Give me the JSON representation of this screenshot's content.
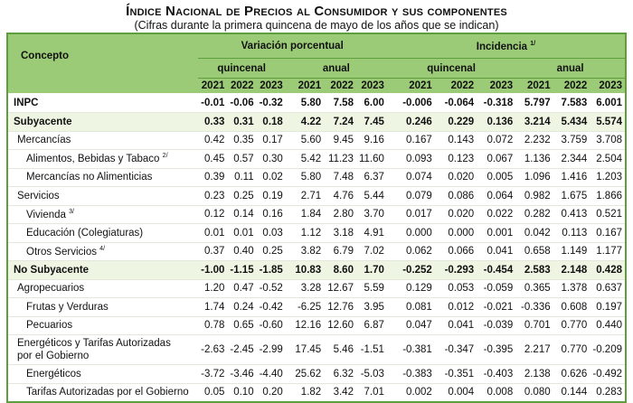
{
  "title": "Índice Nacional de Precios al Consumidor y sus componentes",
  "subtitle": "(Cifras durante la primera quincena de mayo de los años que se indican)",
  "header": {
    "concepto": "Concepto",
    "variacion": "Variación porcentual",
    "incidencia": "Incidencia",
    "incidencia_note": "1/",
    "quincenal": "quincenal",
    "anual": "anual",
    "years": [
      "2021",
      "2022",
      "2023"
    ]
  },
  "rows": [
    {
      "label": "INPC",
      "note": "",
      "level": 0,
      "bold": true,
      "shade": false,
      "values": [
        "-0.01",
        "-0.06",
        "-0.32",
        "5.80",
        "7.58",
        "6.00",
        "-0.006",
        "-0.064",
        "-0.318",
        "5.797",
        "7.583",
        "6.001"
      ]
    },
    {
      "label": "Subyacente",
      "note": "",
      "level": 0,
      "bold": true,
      "shade": true,
      "values": [
        "0.33",
        "0.31",
        "0.18",
        "4.22",
        "7.24",
        "7.45",
        "0.246",
        "0.229",
        "0.136",
        "3.214",
        "5.434",
        "5.574"
      ]
    },
    {
      "label": "Mercancías",
      "note": "",
      "level": 1,
      "values": [
        "0.42",
        "0.35",
        "0.17",
        "5.60",
        "9.45",
        "9.16",
        "0.167",
        "0.143",
        "0.072",
        "2.232",
        "3.759",
        "3.708"
      ]
    },
    {
      "label": "Alimentos, Bebidas y Tabaco",
      "note": "2/",
      "level": 2,
      "values": [
        "0.45",
        "0.57",
        "0.30",
        "5.42",
        "11.23",
        "11.60",
        "0.093",
        "0.123",
        "0.067",
        "1.136",
        "2.344",
        "2.504"
      ]
    },
    {
      "label": "Mercancías no Alimenticias",
      "note": "",
      "level": 2,
      "values": [
        "0.39",
        "0.11",
        "0.02",
        "5.80",
        "7.48",
        "6.37",
        "0.074",
        "0.020",
        "0.005",
        "1.096",
        "1.416",
        "1.203"
      ]
    },
    {
      "label": "Servicios",
      "note": "",
      "level": 1,
      "values": [
        "0.23",
        "0.25",
        "0.19",
        "2.71",
        "4.76",
        "5.44",
        "0.079",
        "0.086",
        "0.064",
        "0.982",
        "1.675",
        "1.866"
      ]
    },
    {
      "label": "Vivienda",
      "note": "3/",
      "level": 2,
      "values": [
        "0.12",
        "0.14",
        "0.16",
        "1.84",
        "2.80",
        "3.70",
        "0.017",
        "0.020",
        "0.022",
        "0.282",
        "0.413",
        "0.521"
      ]
    },
    {
      "label": "Educación (Colegiaturas)",
      "note": "",
      "level": 2,
      "values": [
        "0.01",
        "0.01",
        "0.03",
        "1.12",
        "3.18",
        "4.91",
        "0.000",
        "0.000",
        "0.001",
        "0.042",
        "0.113",
        "0.167"
      ]
    },
    {
      "label": "Otros Servicios",
      "note": "4/",
      "level": 2,
      "values": [
        "0.37",
        "0.40",
        "0.25",
        "3.82",
        "6.79",
        "7.02",
        "0.062",
        "0.066",
        "0.041",
        "0.658",
        "1.149",
        "1.177"
      ]
    },
    {
      "label": "No Subyacente",
      "note": "",
      "level": 0,
      "bold": true,
      "shade": true,
      "values": [
        "-1.00",
        "-1.15",
        "-1.85",
        "10.83",
        "8.60",
        "1.70",
        "-0.252",
        "-0.293",
        "-0.454",
        "2.583",
        "2.148",
        "0.428"
      ]
    },
    {
      "label": "Agropecuarios",
      "note": "",
      "level": 1,
      "values": [
        "1.20",
        "0.47",
        "-0.52",
        "3.28",
        "12.67",
        "5.59",
        "0.129",
        "0.053",
        "-0.059",
        "0.365",
        "1.378",
        "0.637"
      ]
    },
    {
      "label": "Frutas y Verduras",
      "note": "",
      "level": 2,
      "values": [
        "1.74",
        "0.24",
        "-0.42",
        "-6.25",
        "12.76",
        "3.95",
        "0.081",
        "0.012",
        "-0.021",
        "-0.336",
        "0.608",
        "0.197"
      ]
    },
    {
      "label": "Pecuarios",
      "note": "",
      "level": 2,
      "values": [
        "0.78",
        "0.65",
        "-0.60",
        "12.16",
        "12.60",
        "6.87",
        "0.047",
        "0.041",
        "-0.039",
        "0.701",
        "0.770",
        "0.440"
      ]
    },
    {
      "label": "Energéticos y Tarifas Autorizadas",
      "label2": "por el Gobierno",
      "note": "",
      "level": 1,
      "values": [
        "-2.63",
        "-2.45",
        "-2.99",
        "17.45",
        "5.46",
        "-1.51",
        "-0.381",
        "-0.347",
        "-0.395",
        "2.217",
        "0.770",
        "-0.209"
      ]
    },
    {
      "label": "Energéticos",
      "note": "",
      "level": 2,
      "values": [
        "-3.72",
        "-3.46",
        "-4.40",
        "25.62",
        "6.32",
        "-5.03",
        "-0.383",
        "-0.351",
        "-0.403",
        "2.138",
        "0.626",
        "-0.492"
      ]
    },
    {
      "label": "Tarifas Autorizadas por el Gobierno",
      "note": "",
      "level": 2,
      "values": [
        "0.05",
        "0.10",
        "0.20",
        "1.82",
        "3.42",
        "7.01",
        "0.002",
        "0.004",
        "0.008",
        "0.080",
        "0.144",
        "0.283"
      ]
    }
  ],
  "colors": {
    "header_bg": "#9ccb78",
    "border": "#5e9e3c",
    "shade_row": "#eef5e3"
  }
}
